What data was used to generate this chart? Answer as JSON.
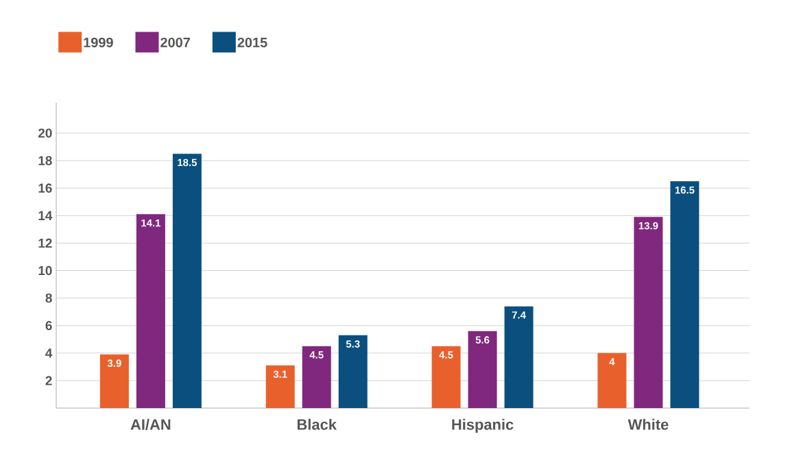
{
  "chart_data": {
    "type": "bar",
    "categories": [
      "AI/AN",
      "Black",
      "Hispanic",
      "White"
    ],
    "series": [
      {
        "name": "1999",
        "color": "#e8612c",
        "values": [
          3.9,
          3.1,
          4.5,
          4
        ]
      },
      {
        "name": "2007",
        "color": "#80287d",
        "values": [
          14.1,
          4.5,
          5.6,
          13.9
        ]
      },
      {
        "name": "2015",
        "color": "#0b4f7f",
        "values": [
          18.5,
          5.3,
          7.4,
          16.5
        ]
      }
    ],
    "ylim": [
      0,
      22.2
    ],
    "yticks": [
      2,
      4,
      6,
      8,
      10,
      12,
      14,
      16,
      18,
      20
    ],
    "grid": "y",
    "legend": "top left",
    "data_labels": true
  }
}
